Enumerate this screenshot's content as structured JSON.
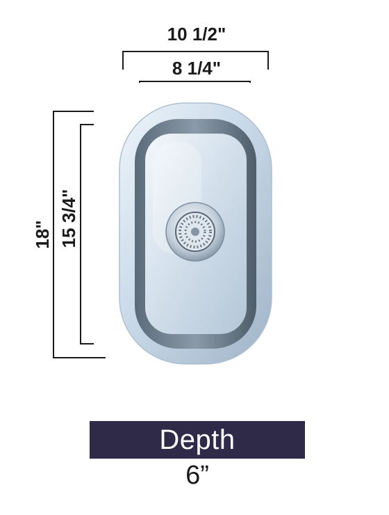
{
  "dimensions": {
    "outer_width": "10 1/2\"",
    "inner_width": "8 1/4\"",
    "outer_length": "18\"",
    "inner_length": "15 3/4\""
  },
  "depth": {
    "label": "Depth",
    "value": "6”"
  },
  "colors": {
    "banner": "#2e2a48",
    "dimension_lines": "#1a1a1a",
    "steel_light": "#e9f1f8",
    "steel_mid": "#b9cbdc",
    "steel_dark": "#6f8091"
  },
  "icons": {
    "drain": "drain-strainer-icon"
  }
}
